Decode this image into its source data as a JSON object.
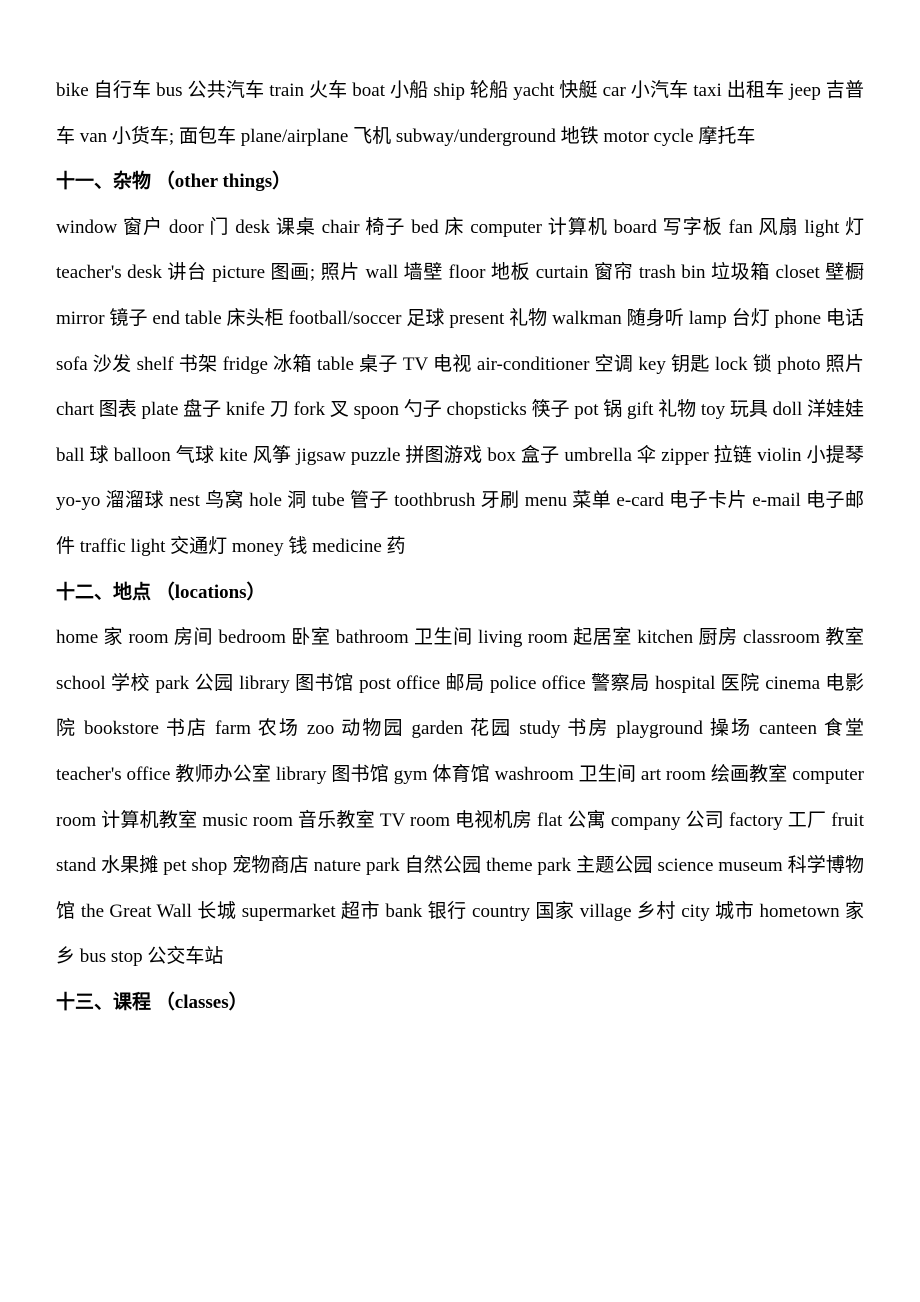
{
  "intro_vocab": "bike 自行车  bus 公共汽车  train 火车  boat 小船  ship 轮船  yacht 快艇  car 小汽车  taxi 出租车  jeep 吉普车  van 小货车; 面包车  plane/airplane 飞机  subway/underground 地铁  motor cycle 摩托车",
  "sections": [
    {
      "number": "十一、",
      "cn": "杂物 ",
      "en": "（other things）",
      "vocab": "window 窗户  door 门  desk 课桌  chair 椅子  bed 床  computer 计算机  board 写字板  fan 风扇  light 灯  teacher's desk 讲台  picture 图画; 照片  wall 墙壁  floor 地板  curtain 窗帘  trash bin 垃圾箱  closet 壁橱  mirror 镜子  end table 床头柜  football/soccer 足球  present 礼物  walkman 随身听  lamp 台灯  phone 电话  sofa 沙发  shelf 书架  fridge 冰箱  table 桌子  TV 电视  air-conditioner 空调  key 钥匙  lock 锁  photo 照片  chart 图表  plate 盘子  knife 刀  fork 叉  spoon 勺子  chopsticks 筷子  pot 锅  gift 礼物  toy 玩具  doll 洋娃娃  ball 球  balloon 气球  kite 风筝  jigsaw puzzle 拼图游戏  box 盒子  umbrella 伞  zipper 拉链  violin 小提琴  yo-yo 溜溜球  nest 鸟窝  hole 洞  tube 管子  toothbrush 牙刷  menu 菜单  e-card 电子卡片  e-mail 电子邮件  traffic light 交通灯  money 钱  medicine 药"
    },
    {
      "number": "十二、",
      "cn": "地点 ",
      "en": "（locations）",
      "vocab": "home 家  room 房间  bedroom 卧室  bathroom 卫生间  living room 起居室  kitchen 厨房  classroom 教室  school 学校  park 公园  library 图书馆  post office 邮局  police office 警察局  hospital 医院  cinema 电影院  bookstore 书店  farm 农场  zoo 动物园  garden 花园  study 书房  playground 操场  canteen 食堂  teacher's office 教师办公室  library 图书馆  gym 体育馆  washroom 卫生间  art room 绘画教室  computer room 计算机教室  music room 音乐教室  TV room 电视机房  flat 公寓  company 公司  factory 工厂  fruit stand 水果摊  pet shop 宠物商店  nature park 自然公园  theme park 主题公园  science museum 科学博物馆  the Great Wall 长城  supermarket 超市  bank 银行  country 国家  village 乡村  city 城市  hometown 家乡  bus stop 公交车站"
    },
    {
      "number": "十三、",
      "cn": "课程 ",
      "en": "（classes）",
      "vocab": ""
    }
  ]
}
